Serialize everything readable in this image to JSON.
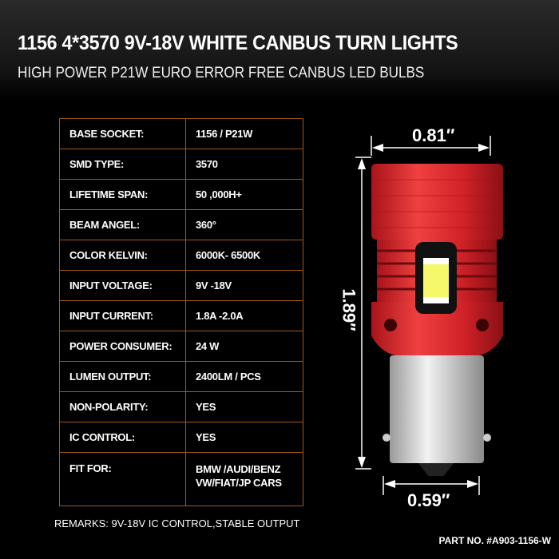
{
  "header": {
    "title": "1156 4*3570 9V-18V WHITE CANBUS TURN LIGHTS",
    "subtitle": "HIGH POWER P21W EURO ERROR FREE CANBUS LED BULBS"
  },
  "specs": [
    {
      "label": "BASE SOCKET:",
      "value": "1156 / P21W"
    },
    {
      "label": "SMD TYPE:",
      "value": "3570"
    },
    {
      "label": "LIFETIME SPAN:",
      "value": "50 ,000H+"
    },
    {
      "label": "BEAM ANGEL:",
      "value": "360°"
    },
    {
      "label": "COLOR KELVIN:",
      "value": "6000K- 6500K"
    },
    {
      "label": "INPUT VOLTAGE:",
      "value": "9V -18V"
    },
    {
      "label": "INPUT  CURRENT:",
      "value": "1.8A -2.0A"
    },
    {
      "label": "POWER CONSUMER:",
      "value": "24 W"
    },
    {
      "label": "LUMEN OUTPUT:",
      "value": "2400LM / PCS"
    },
    {
      "label": "NON-POLARITY:",
      "value": "YES"
    },
    {
      "label": "IC CONTROL:",
      "value": "YES"
    },
    {
      "label": "FIT FOR:",
      "value": "BMW /AUDI/BENZ\nVW/FIAT/JP CARS"
    }
  ],
  "dimensions": {
    "top_width": "0.81″",
    "height": "1.89″",
    "base_width": "0.59″"
  },
  "remarks": "REMARKS: 9V-18V IC CONTROL,STABLE OUTPUT",
  "part_no": "PART NO. #A903-1156-W",
  "colors": {
    "table_border": "#a0581e",
    "bulb_body": "#d8262a"
  }
}
